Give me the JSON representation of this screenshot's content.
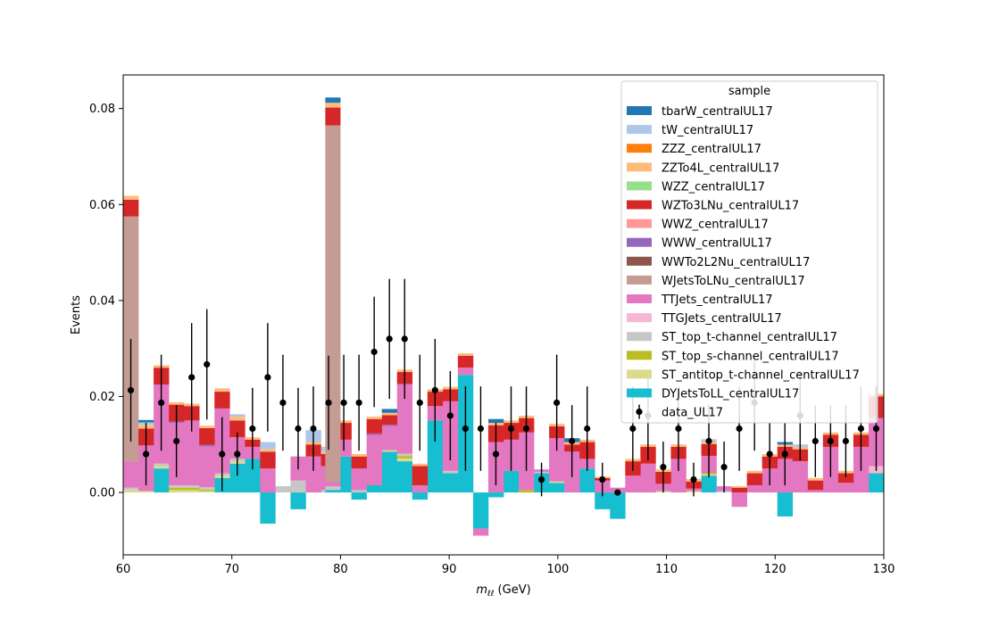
{
  "chart_data": {
    "type": "bar",
    "stacked": true,
    "xlabel": "m_ℓℓ (GeV)",
    "xlabel_main": "m",
    "xlabel_sub": "ℓℓ",
    "xlabel_unit": " (GeV)",
    "ylabel": "Events",
    "xlim": [
      60,
      130
    ],
    "ylim": [
      -0.013,
      0.087
    ],
    "x_ticks": [
      60,
      70,
      80,
      90,
      100,
      110,
      120,
      130
    ],
    "y_ticks": [
      0.0,
      0.02,
      0.04,
      0.06,
      0.08
    ],
    "y_tick_labels": [
      "0.00",
      "0.02",
      "0.04",
      "0.06",
      "0.08"
    ],
    "bin_edges_start": 60,
    "bin_width": 1.4,
    "legend": {
      "title": "sample",
      "placement": "upper right"
    },
    "series": [
      {
        "name": "DYJetsToLL_centralUL17",
        "color": "#17becf",
        "values": [
          0,
          0,
          0.005,
          0,
          0,
          0,
          0.003,
          0.006,
          0.007,
          -0.0065,
          0,
          -0.0035,
          0,
          0,
          0.0075,
          -0.0015,
          0.0015,
          0.0085,
          0.0065,
          -0.0015,
          0.015,
          0.004,
          0.0245,
          -0.0075,
          -0.001,
          0.0045,
          0,
          0.004,
          0.002,
          0,
          0.005,
          -0.0035,
          -0.0055,
          0,
          0,
          0,
          0,
          0,
          0.0035,
          0,
          0,
          0,
          0,
          -0.005,
          0,
          0,
          0,
          0,
          0,
          0.004
        ]
      },
      {
        "name": "ST_antitop_t-channel_centralUL17",
        "color": "#dbdb8d",
        "values": [
          0.0005,
          0.0003,
          0.0005,
          0.0005,
          0.0005,
          0.0003,
          0.0005,
          0.0005,
          0,
          0,
          0,
          0,
          0,
          0,
          0,
          0,
          0,
          0.0003,
          0.0006,
          0,
          0,
          0,
          0,
          0,
          0,
          0,
          0,
          0,
          0.0003,
          0,
          0,
          0,
          0,
          0,
          0,
          0.0003,
          0,
          0.0003,
          0.0003,
          0,
          0,
          0,
          0,
          0,
          0,
          0,
          0,
          0,
          0,
          0
        ]
      },
      {
        "name": "ST_top_s-channel_centralUL17",
        "color": "#bcbd22",
        "values": [
          0,
          0,
          0,
          0.0005,
          0.0005,
          0.0003,
          0,
          0,
          0,
          0,
          0,
          0,
          0,
          0,
          0,
          0,
          0,
          0,
          0.0005,
          0,
          0,
          0,
          0,
          0,
          0,
          0,
          0.0005,
          0,
          0,
          0,
          0,
          0,
          0,
          0,
          0,
          0,
          0,
          0,
          0.0003,
          0,
          0,
          0,
          0,
          0,
          0,
          0,
          0,
          0,
          0,
          0
        ]
      },
      {
        "name": "ST_top_t-channel_centralUL17",
        "color": "#c7c7c7",
        "values": [
          0.0005,
          0,
          0.0005,
          0.0005,
          0.0005,
          0.0005,
          0.0005,
          0.0005,
          0,
          0,
          0.0013,
          0.0025,
          0,
          0.0005,
          0,
          0.0005,
          0,
          0,
          0.0005,
          0,
          0,
          0.0005,
          0,
          0,
          0,
          0,
          0,
          0.0003,
          0,
          0,
          0,
          0,
          0,
          0,
          0,
          0,
          0,
          0,
          0,
          0.0003,
          0,
          0,
          0,
          0,
          0,
          0,
          0,
          0,
          0,
          0
        ]
      },
      {
        "name": "TTGJets_centralUL17",
        "color": "#f7b6d2",
        "values": [
          0,
          0,
          0,
          0,
          0,
          0,
          0,
          0,
          0,
          0,
          0,
          0,
          0,
          0,
          0,
          0,
          0,
          0,
          0,
          0,
          0,
          0,
          0,
          0,
          0,
          0,
          0,
          0,
          0,
          0,
          0,
          0,
          0,
          0,
          0,
          0,
          0,
          0,
          0,
          0,
          0,
          0,
          0,
          0,
          0,
          0,
          0,
          0,
          0,
          0.0015
        ]
      },
      {
        "name": "TTJets_centralUL17",
        "color": "#e377c2",
        "values": [
          0.0055,
          0.0095,
          0.0165,
          0.013,
          0.0135,
          0.0085,
          0.0135,
          0.0045,
          0.0025,
          0.005,
          0,
          0.005,
          0.0075,
          0.005,
          0.0035,
          0.0045,
          0.0105,
          0.005,
          0.0145,
          0.0015,
          0.003,
          0.0145,
          0.0015,
          -0.0015,
          0.0105,
          0.0065,
          0.012,
          0.0005,
          0.009,
          0.0085,
          0.002,
          0.0025,
          0.001,
          0.0035,
          0.006,
          0.0015,
          0.007,
          0.0005,
          0.0035,
          0.001,
          -0.003,
          0.0015,
          0.005,
          0.007,
          0.0065,
          0.0005,
          0.0095,
          0.002,
          0.0095,
          0.01
        ]
      },
      {
        "name": "WJetsToLNu_centralUL17",
        "color": "#c49c94",
        "values": [
          0.051,
          0,
          0,
          0,
          0,
          0,
          0,
          0,
          0,
          0,
          0,
          0,
          0,
          0,
          0,
          0,
          0,
          0,
          0,
          0,
          0,
          0,
          0,
          0,
          0,
          0,
          0,
          0,
          0,
          0,
          0,
          0,
          0,
          0,
          0,
          0,
          0,
          0,
          0,
          0,
          0,
          0,
          0,
          0,
          0,
          0,
          0,
          0,
          0,
          0
        ]
      },
      {
        "name": "WJetsToLNu_peak79",
        "color": "#c49c94",
        "hide_in_legend": true,
        "values": [
          0,
          0,
          0,
          0,
          0,
          0,
          0,
          0,
          0,
          0,
          0,
          0,
          0,
          0,
          0,
          0,
          0,
          0,
          0,
          0,
          0,
          0,
          0,
          0,
          0,
          0,
          0,
          0,
          0,
          0,
          0,
          0,
          0,
          0,
          0,
          0,
          0,
          0,
          0,
          0,
          0,
          0,
          0,
          0,
          0,
          0,
          0,
          0,
          0,
          0
        ]
      },
      {
        "name": "WWTo2L2Nu_centralUL17",
        "color": "#8c564b",
        "values": [
          0,
          0,
          0,
          0,
          0,
          0,
          0,
          0,
          0,
          0,
          0,
          0,
          0,
          0,
          0,
          0,
          0,
          0,
          0,
          0,
          0,
          0,
          0,
          0,
          0,
          0,
          0,
          0,
          0,
          0,
          0,
          0,
          0,
          0,
          0,
          0,
          0,
          0,
          0,
          0,
          0,
          0,
          0,
          0,
          0,
          0,
          0,
          0,
          0,
          0
        ]
      },
      {
        "name": "WWW_centralUL17",
        "color": "#9467bd",
        "values": [
          0,
          0,
          0,
          0.0003,
          0,
          0.0003,
          0,
          0,
          0,
          0,
          0,
          0,
          0,
          0,
          0,
          0,
          0.0003,
          0.0003,
          0,
          0,
          0,
          0,
          0,
          0,
          0,
          0,
          0,
          0,
          0,
          0,
          0,
          0,
          0,
          0,
          0,
          0,
          0,
          0,
          0,
          0,
          0,
          0,
          0,
          0,
          0,
          0,
          0,
          0,
          0,
          0
        ]
      },
      {
        "name": "WWZ_centralUL17",
        "color": "#ff9896",
        "values": [
          0,
          0,
          0,
          0,
          0,
          0,
          0,
          0,
          0,
          0,
          0,
          0,
          0,
          0,
          0,
          0,
          0,
          0,
          0,
          0,
          0,
          0,
          0,
          0,
          0,
          0,
          0,
          0,
          0,
          0,
          0,
          0,
          0,
          0,
          0,
          0,
          0,
          0,
          0,
          0,
          0,
          0,
          0,
          0,
          0,
          0,
          0,
          0,
          0,
          0
        ]
      },
      {
        "name": "WZTo3LNu_centralUL17",
        "color": "#d62728",
        "values": [
          0.0035,
          0.0035,
          0.0035,
          0.0035,
          0.003,
          0.0035,
          0.0035,
          0.0035,
          0.0015,
          0.0035,
          0,
          0,
          0.0025,
          0.0025,
          0.0035,
          0.0025,
          0.003,
          0.002,
          0.0025,
          0.004,
          0.003,
          0.0025,
          0.0025,
          0,
          0.0035,
          0.0035,
          0.003,
          0,
          0.0025,
          0.0015,
          0.0035,
          0.0005,
          0,
          0.003,
          0.0035,
          0.0025,
          0.0025,
          0.0015,
          0.0025,
          0,
          0.001,
          0.0025,
          0.0025,
          0.0025,
          0.0025,
          0.002,
          0.0025,
          0.002,
          0.0025,
          0.0045
        ]
      },
      {
        "name": "WZZ_centralUL17",
        "color": "#98df8a",
        "values": [
          0,
          0,
          0,
          0,
          0,
          0,
          0,
          0,
          0,
          0,
          0,
          0,
          0,
          0,
          0,
          0,
          0,
          0,
          0,
          0,
          0,
          0,
          0,
          0,
          0,
          0,
          0,
          0,
          0,
          0,
          0,
          0,
          0,
          0,
          0,
          0,
          0,
          0,
          0,
          0,
          0,
          0,
          0,
          0,
          0,
          0,
          0,
          0,
          0,
          0
        ]
      },
      {
        "name": "ZZTo4L_centralUL17",
        "color": "#ffbb78",
        "values": [
          0.0008,
          0.0008,
          0.0005,
          0.0005,
          0.0005,
          0.0005,
          0.0007,
          0.0008,
          0.0005,
          0.0005,
          0,
          0,
          0.0005,
          0.0005,
          0.0005,
          0.0005,
          0.0005,
          0.0005,
          0.0005,
          0.0005,
          0.0005,
          0.0005,
          0.0005,
          0,
          0.0005,
          0.0005,
          0.0005,
          0,
          0.0005,
          0.0005,
          0.0005,
          0.0003,
          0,
          0.0005,
          0.0005,
          0.0005,
          0.0005,
          0.0005,
          0.0005,
          0,
          0.0003,
          0.0005,
          0.0005,
          0.0005,
          0.0005,
          0.0005,
          0.0005,
          0.0005,
          0.0005,
          0.0005
        ]
      },
      {
        "name": "ZZZ_centralUL17",
        "color": "#ff7f0e",
        "values": [
          0,
          0,
          0,
          0,
          0,
          0,
          0,
          0,
          0,
          0,
          0,
          0,
          0,
          0,
          0,
          0,
          0,
          0,
          0,
          0,
          0,
          0,
          0,
          0,
          0,
          0,
          0,
          0,
          0,
          0,
          0,
          0,
          0,
          0,
          0,
          0,
          0,
          0,
          0,
          0,
          0,
          0,
          0,
          0,
          0,
          0,
          0,
          0,
          0,
          0
        ]
      },
      {
        "name": "tW_centralUL17",
        "color": "#aec7e8",
        "values": [
          0,
          0.0005,
          0,
          0,
          0,
          0,
          0,
          0.0005,
          0,
          0.0015,
          0,
          0,
          0.0025,
          0.001,
          0,
          0,
          0,
          0,
          0,
          0,
          0,
          0,
          0,
          0,
          0,
          0,
          0,
          0,
          0,
          0,
          0,
          0,
          0,
          0,
          0,
          0,
          0,
          0,
          0.0005,
          0,
          0,
          0,
          0,
          0,
          0.0005,
          0,
          0,
          0,
          0,
          0
        ]
      },
      {
        "name": "tbarW_centralUL17",
        "color": "#1f77b4",
        "values": [
          0,
          0.0005,
          0,
          0,
          0,
          0,
          0,
          0,
          0,
          0,
          0,
          0,
          0,
          0,
          0,
          0,
          0,
          0.0008,
          0,
          0,
          0,
          0,
          0,
          0,
          0.0008,
          0,
          0,
          0,
          0,
          0.0008,
          0,
          0,
          0,
          0,
          0,
          0,
          0,
          0,
          0,
          0,
          0,
          0,
          0,
          0.0005,
          0,
          0,
          0,
          0,
          0,
          0
        ]
      }
    ],
    "legend_order": [
      "tbarW_centralUL17",
      "tW_centralUL17",
      "ZZZ_centralUL17",
      "ZZTo4L_centralUL17",
      "WZZ_centralUL17",
      "WZTo3LNu_centralUL17",
      "WWZ_centralUL17",
      "WWW_centralUL17",
      "WWTo2L2Nu_centralUL17",
      "WJetsToLNu_centralUL17",
      "TTJets_centralUL17",
      "TTGJets_centralUL17",
      "ST_top_t-channel_centralUL17",
      "ST_top_s-channel_centralUL17",
      "ST_antitop_t-channel_centralUL17",
      "DYJetsToLL_centralUL17"
    ],
    "data_series": {
      "name": "data_UL17",
      "color": "#000000",
      "points": [
        {
          "x": 60.7,
          "y": 0.0213,
          "err": 0.0107
        },
        {
          "x": 62.1,
          "y": 0.008,
          "err": 0.0065
        },
        {
          "x": 63.5,
          "y": 0.0187,
          "err": 0.01
        },
        {
          "x": 64.9,
          "y": 0.0107,
          "err": 0.0075
        },
        {
          "x": 66.3,
          "y": 0.024,
          "err": 0.0113
        },
        {
          "x": 67.7,
          "y": 0.0267,
          "err": 0.0115
        },
        {
          "x": 69.1,
          "y": 0.008,
          "err": 0.0077
        },
        {
          "x": 70.5,
          "y": 0.008,
          "err": 0.0045
        },
        {
          "x": 71.9,
          "y": 0.0133,
          "err": 0.0085
        },
        {
          "x": 73.3,
          "y": 0.024,
          "err": 0.0113
        },
        {
          "x": 74.7,
          "y": 0.0187,
          "err": 0.01
        },
        {
          "x": 76.1,
          "y": 0.0133,
          "err": 0.0085
        },
        {
          "x": 77.5,
          "y": 0.0133,
          "err": 0.0088
        },
        {
          "x": 78.9,
          "y": 0.0187,
          "err": 0.0098
        },
        {
          "x": 80.3,
          "y": 0.0187,
          "err": 0.01
        },
        {
          "x": 81.7,
          "y": 0.0187,
          "err": 0.01
        },
        {
          "x": 83.1,
          "y": 0.0293,
          "err": 0.0115
        },
        {
          "x": 84.5,
          "y": 0.032,
          "err": 0.0125
        },
        {
          "x": 85.9,
          "y": 0.032,
          "err": 0.0125
        },
        {
          "x": 87.3,
          "y": 0.0187,
          "err": 0.01
        },
        {
          "x": 88.7,
          "y": 0.0213,
          "err": 0.0107
        },
        {
          "x": 90.1,
          "y": 0.016,
          "err": 0.0093
        },
        {
          "x": 91.5,
          "y": 0.0133,
          "err": 0.0088
        },
        {
          "x": 92.9,
          "y": 0.0133,
          "err": 0.0088
        },
        {
          "x": 94.3,
          "y": 0.008,
          "err": 0.0065
        },
        {
          "x": 95.7,
          "y": 0.0133,
          "err": 0.0088
        },
        {
          "x": 97.1,
          "y": 0.0133,
          "err": 0.0088
        },
        {
          "x": 98.5,
          "y": 0.0027,
          "err": 0.0035
        },
        {
          "x": 99.9,
          "y": 0.0187,
          "err": 0.01
        },
        {
          "x": 101.3,
          "y": 0.0107,
          "err": 0.0075
        },
        {
          "x": 102.7,
          "y": 0.0133,
          "err": 0.0088
        },
        {
          "x": 104.1,
          "y": 0.0027,
          "err": 0.0035
        },
        {
          "x": 105.5,
          "y": 0.0,
          "err": 0.0
        },
        {
          "x": 106.9,
          "y": 0.0133,
          "err": 0.0088
        },
        {
          "x": 108.3,
          "y": 0.016,
          "err": 0.0093
        },
        {
          "x": 109.7,
          "y": 0.0053,
          "err": 0.0053
        },
        {
          "x": 111.1,
          "y": 0.0133,
          "err": 0.0088
        },
        {
          "x": 112.5,
          "y": 0.0027,
          "err": 0.0035
        },
        {
          "x": 113.9,
          "y": 0.0107,
          "err": 0.0075
        },
        {
          "x": 115.3,
          "y": 0.0053,
          "err": 0.0053
        },
        {
          "x": 116.7,
          "y": 0.0133,
          "err": 0.0088
        },
        {
          "x": 118.1,
          "y": 0.0187,
          "err": 0.01
        },
        {
          "x": 119.5,
          "y": 0.008,
          "err": 0.0065
        },
        {
          "x": 120.9,
          "y": 0.008,
          "err": 0.0065
        },
        {
          "x": 122.3,
          "y": 0.016,
          "err": 0.0093
        },
        {
          "x": 123.7,
          "y": 0.0107,
          "err": 0.0075
        },
        {
          "x": 125.1,
          "y": 0.0107,
          "err": 0.0075
        },
        {
          "x": 126.5,
          "y": 0.0107,
          "err": 0.0075
        },
        {
          "x": 127.9,
          "y": 0.0133,
          "err": 0.0088
        },
        {
          "x": 129.3,
          "y": 0.0133,
          "err": 0.0088
        }
      ]
    }
  }
}
